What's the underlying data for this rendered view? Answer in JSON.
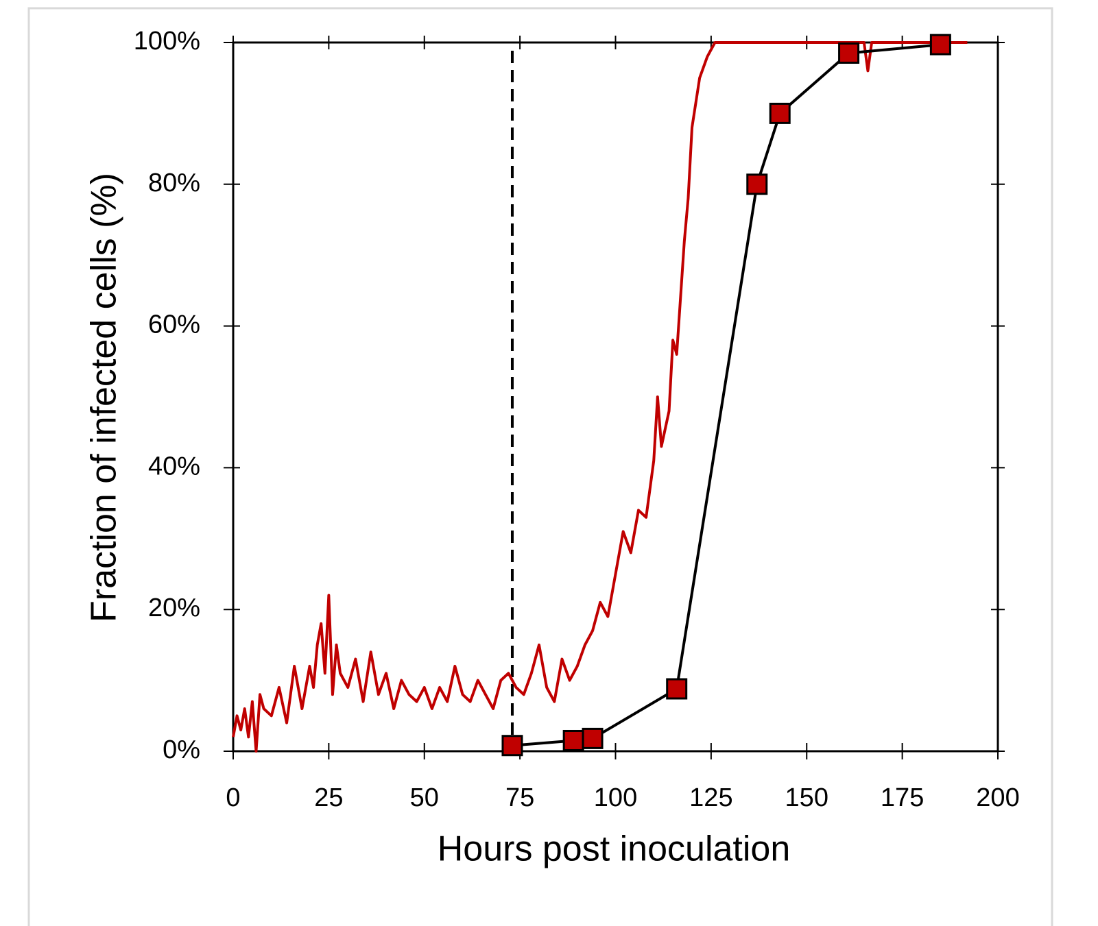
{
  "chart_data": {
    "type": "line",
    "xlabel": "Hours post inoculation",
    "ylabel": "Fraction of infected cells (%)",
    "xlim": [
      0,
      200
    ],
    "xticks": [
      0,
      25,
      50,
      75,
      100,
      125,
      150,
      175,
      200
    ],
    "ylim": [
      0,
      100
    ],
    "yticks": [
      {
        "value": 0,
        "label": "0%"
      },
      {
        "value": 20,
        "label": "20%"
      },
      {
        "value": 40,
        "label": "40%"
      },
      {
        "value": 60,
        "label": "60%"
      },
      {
        "value": 80,
        "label": "80%"
      },
      {
        "value": 100,
        "label": "100%"
      }
    ],
    "vlines": [
      73
    ],
    "series": [
      {
        "color": "#c00000",
        "marker": "none",
        "x": [
          0,
          1,
          2,
          3,
          4,
          5,
          6,
          7,
          8,
          10,
          12,
          14,
          16,
          18,
          20,
          21,
          22,
          23,
          24,
          25,
          26,
          27,
          28,
          30,
          32,
          34,
          36,
          38,
          40,
          42,
          44,
          46,
          48,
          50,
          52,
          54,
          56,
          58,
          60,
          62,
          64,
          66,
          68,
          70,
          72,
          74,
          76,
          78,
          80,
          82,
          84,
          86,
          88,
          90,
          92,
          94,
          96,
          98,
          100,
          102,
          104,
          106,
          108,
          110,
          111,
          112,
          114,
          115,
          116,
          118,
          119,
          120,
          122,
          124,
          126,
          130,
          140,
          150,
          160,
          165,
          166,
          167,
          170,
          180,
          192
        ],
        "values": [
          2,
          5,
          3,
          6,
          2,
          7,
          0,
          8,
          6,
          5,
          9,
          4,
          12,
          6,
          12,
          9,
          15,
          18,
          11,
          22,
          8,
          15,
          11,
          9,
          13,
          7,
          14,
          8,
          11,
          6,
          10,
          8,
          7,
          9,
          6,
          9,
          7,
          12,
          8,
          7,
          10,
          8,
          6,
          10,
          11,
          9,
          8,
          11,
          15,
          9,
          7,
          13,
          10,
          12,
          15,
          17,
          21,
          19,
          25,
          31,
          28,
          34,
          33,
          41,
          50,
          43,
          48,
          58,
          56,
          72,
          78,
          88,
          95,
          98,
          100,
          100,
          100,
          100,
          100,
          100,
          96,
          100,
          100,
          100,
          100
        ]
      },
      {
        "color": "#000000",
        "marker": "square",
        "marker_color": "#c00000",
        "x": [
          73,
          89,
          94,
          116,
          137,
          143,
          161,
          185
        ],
        "values": [
          0.8,
          1.5,
          1.8,
          8.8,
          80,
          90,
          98.5,
          99.7
        ]
      }
    ]
  }
}
